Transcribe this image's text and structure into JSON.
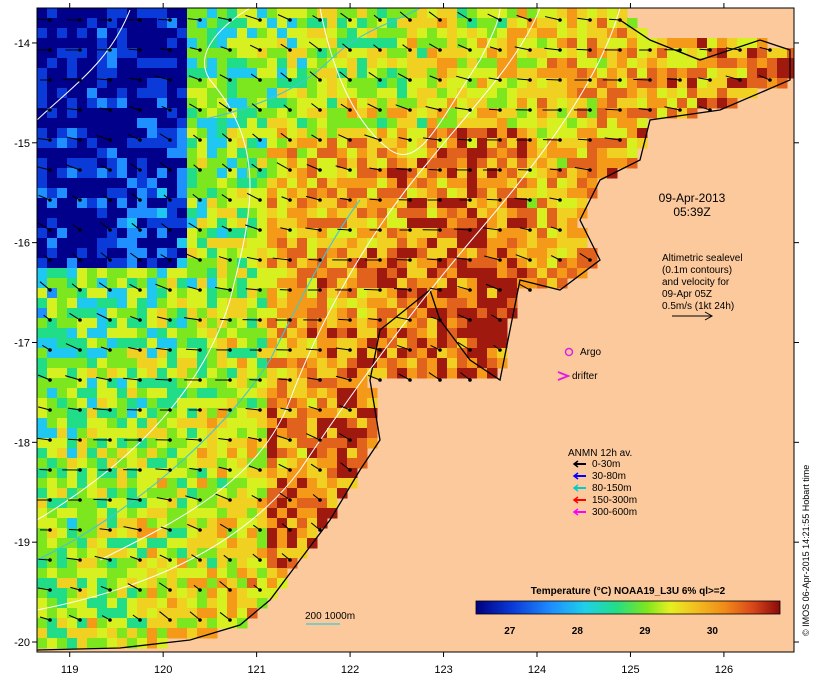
{
  "map": {
    "x_ticks": [
      "119",
      "120",
      "121",
      "122",
      "123",
      "124",
      "125",
      "126"
    ],
    "y_ticks": [
      "-14",
      "-15",
      "-16",
      "-17",
      "-18",
      "-19",
      "-20"
    ],
    "x_range": [
      118.65,
      126.75
    ],
    "y_range": [
      -20.1,
      -13.65
    ],
    "land_color": "#fcc99c",
    "palette": [
      "#00008b",
      "#0a3ad8",
      "#1e90ff",
      "#1fc8f0",
      "#22dd88",
      "#7ce61f",
      "#d6f020",
      "#f0d020",
      "#f59a18",
      "#e0621c",
      "#a0190f"
    ]
  },
  "timestamp": {
    "date": "09-Apr-2013",
    "time": "05:39Z"
  },
  "altimetry_note": {
    "lines": [
      "Altimetric sealevel",
      "(0.1m contours)",
      "and velocity for",
      "09-Apr 05Z",
      "0.5m/s (1kt 24h)"
    ]
  },
  "markers": {
    "argo_label": "Argo",
    "argo_color": "#e020e0",
    "drifter_label": "drifter",
    "drifter_color": "#e020e0"
  },
  "anmn_legend": {
    "title": "ANMN 12h av.",
    "items": [
      {
        "label": "0-30m",
        "color": "#000000"
      },
      {
        "label": "30-80m",
        "color": "#0000ff"
      },
      {
        "label": "80-150m",
        "color": "#00cccc"
      },
      {
        "label": "150-300m",
        "color": "#ff0000"
      },
      {
        "label": "300-600m",
        "color": "#ff00ff"
      }
    ]
  },
  "isobath_label": "200  1000m",
  "colorbar": {
    "title": "Temperature (°C) NOAA19_L3U 6% ql>=2",
    "ticks": [
      "27",
      "28",
      "29",
      "30"
    ],
    "range": [
      26.5,
      31
    ]
  },
  "credit": "© IMOS 06-Apr-2015 14:21:55 Hobart time"
}
